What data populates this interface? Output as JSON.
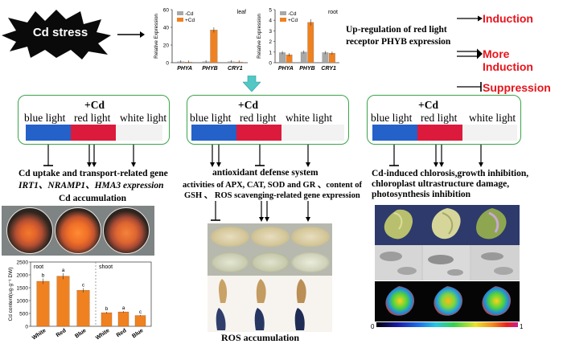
{
  "stress_label": "Cd stress",
  "legend": {
    "induction": "Induction",
    "more_induction": "More Induction",
    "suppression": "Suppression"
  },
  "upregulation_text": [
    "Up-regulation of red light",
    "receptor PHYB expression"
  ],
  "colors": {
    "blue_light": "#2461c9",
    "red_light": "#dc1a3c",
    "white_light": "#f2f2f2",
    "panel_border": "#3ca34a",
    "bar_orange": "#f08120",
    "bar_gray": "#a8a8a8",
    "legend_red": "#e8141b"
  },
  "panels": [
    {
      "plus_cd": "+Cd",
      "lights": [
        "blue light",
        "red light",
        "white light"
      ],
      "effect_lines": [
        "Cd uptake and transport-related gene",
        "IRT1、NRAMP1、HMA3 expression"
      ],
      "caption": "Cd accumulation"
    },
    {
      "plus_cd": "+Cd",
      "lights": [
        "blue light",
        "red light",
        "white light"
      ],
      "effect_title": "antioxidant defense system",
      "effect_lines": [
        "activities of APX, CAT, SOD and GR 、content of",
        "GSH 、 ROS scavenging-related gene expression"
      ],
      "caption": "ROS accumulation"
    },
    {
      "plus_cd": "+Cd",
      "lights": [
        "blue light",
        "red light",
        "white light"
      ],
      "effect_lines": [
        "Cd-induced chlorosis,growth inhibition,",
        "chloroplast ultrastructure damage,",
        "photosynthesis inhibition"
      ],
      "colorbar": {
        "min": "0",
        "max": "1"
      }
    }
  ],
  "chart_data": [
    {
      "type": "bar",
      "title": "leaf",
      "ylabel": "Relative Expression",
      "categories": [
        "PHYA",
        "PHYB",
        "CRY1"
      ],
      "series": [
        {
          "name": "-Cd",
          "values": [
            1,
            1,
            1
          ]
        },
        {
          "name": "+Cd",
          "values": [
            0.7,
            37,
            0.8
          ]
        }
      ],
      "ylim": [
        0,
        60
      ],
      "yticks": [
        "0",
        "20",
        "40",
        "60"
      ]
    },
    {
      "type": "bar",
      "title": "root",
      "ylabel": "Relative Expression",
      "categories": [
        "PHYA",
        "PHYB",
        "CRY1"
      ],
      "series": [
        {
          "name": "-Cd",
          "values": [
            0.95,
            1,
            0.95
          ]
        },
        {
          "name": "+Cd",
          "values": [
            0.75,
            3.8,
            0.9
          ]
        }
      ],
      "ylim": [
        0,
        5
      ],
      "yticks": [
        "0",
        "1",
        "2",
        "3",
        "4",
        "5"
      ]
    },
    {
      "type": "bar",
      "ylabel": "Cd content(ug·g⁻¹ DW)",
      "groups": [
        "root",
        "shoot"
      ],
      "categories": [
        "White",
        "Red",
        "Blue"
      ],
      "series": [
        {
          "name": "root",
          "values": [
            1750,
            1950,
            1400
          ],
          "letters": [
            "b",
            "a",
            "c"
          ]
        },
        {
          "name": "shoot",
          "values": [
            530,
            560,
            420
          ],
          "letters": [
            "b",
            "a",
            "c"
          ]
        }
      ],
      "ylim": [
        0,
        2500
      ],
      "yticks": [
        "0",
        "500",
        "1000",
        "1500",
        "2000",
        "2500"
      ]
    }
  ]
}
